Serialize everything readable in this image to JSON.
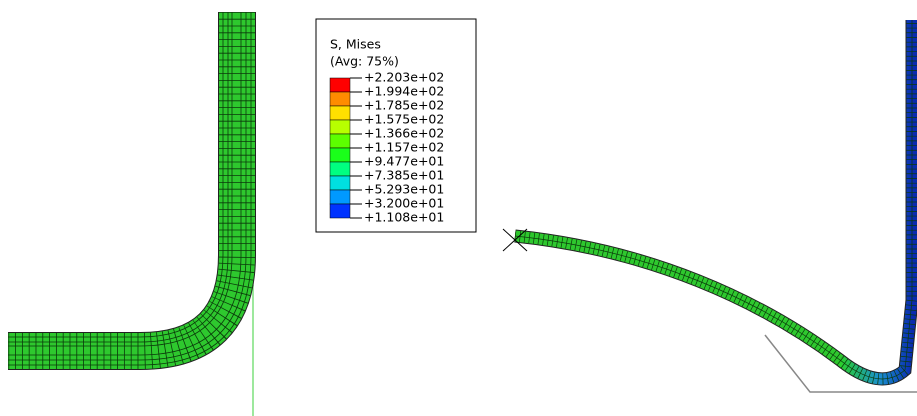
{
  "legend": {
    "title": "S, Mises",
    "subtitle": "(Avg: 75%)",
    "labels": [
      "+2.203e+02",
      "+1.994e+02",
      "+1.785e+02",
      "+1.575e+02",
      "+1.366e+02",
      "+1.157e+02",
      "+9.477e+01",
      "+7.385e+01",
      "+5.293e+01",
      "+3.200e+01",
      "+1.108e+01"
    ],
    "colors": [
      "#ff0000",
      "#ff8c00",
      "#ffe000",
      "#b8ff00",
      "#5cff00",
      "#1aff1a",
      "#00ff80",
      "#00e0e0",
      "#0099ff",
      "#0033ff"
    ]
  }
}
